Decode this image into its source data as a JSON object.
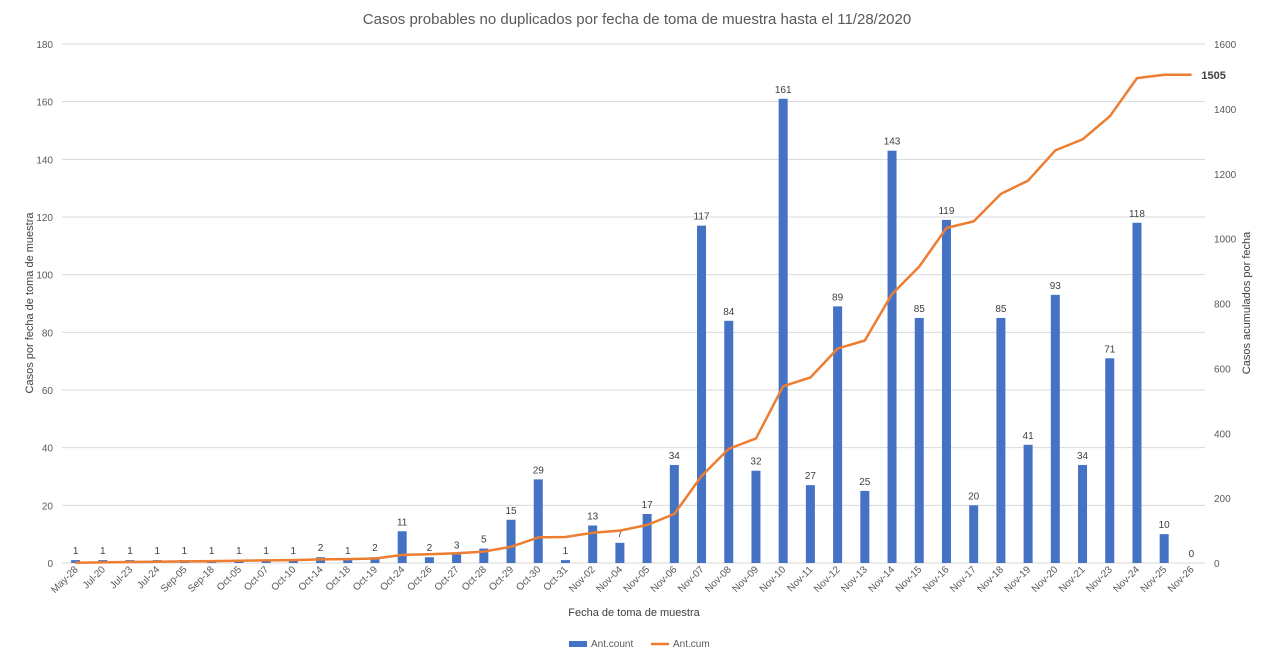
{
  "chart_data": {
    "type": "bar",
    "title": "Casos probables no duplicados por fecha de toma de muestra hasta el 11/28/2020",
    "xlabel": "Fecha de toma de muestra",
    "ylabel": "Casos por fecha de toma de muestra",
    "y2label": "Casos acumulados por fecha",
    "ylim": [
      0,
      180
    ],
    "y2lim": [
      0,
      1600
    ],
    "yticks": [
      "0",
      "20",
      "40",
      "60",
      "80",
      "100",
      "120",
      "140",
      "160",
      "180"
    ],
    "y2ticks": [
      "0",
      "200",
      "400",
      "600",
      "800",
      "1000",
      "1200",
      "1400",
      "1600"
    ],
    "grid": true,
    "legend_position": "bottom",
    "categories": [
      "May-28",
      "Jul-20",
      "Jul-23",
      "Jul-24",
      "Sep-05",
      "Sep-18",
      "Oct-05",
      "Oct-07",
      "Oct-10",
      "Oct-14",
      "Oct-18",
      "Oct-19",
      "Oct-24",
      "Oct-26",
      "Oct-27",
      "Oct-28",
      "Oct-29",
      "Oct-30",
      "Oct-31",
      "Nov-02",
      "Nov-04",
      "Nov-05",
      "Nov-06",
      "Nov-07",
      "Nov-08",
      "Nov-09",
      "Nov-10",
      "Nov-11",
      "Nov-12",
      "Nov-13",
      "Nov-14",
      "Nov-15",
      "Nov-16",
      "Nov-17",
      "Nov-18",
      "Nov-19",
      "Nov-20",
      "Nov-21",
      "Nov-23",
      "Nov-24",
      "Nov-25",
      "Nov-26"
    ],
    "series": [
      {
        "name": "Ant.count",
        "type": "bar",
        "axis": "left",
        "color": "#4472c4",
        "values": [
          1,
          1,
          1,
          1,
          1,
          1,
          1,
          1,
          1,
          2,
          1,
          2,
          11,
          2,
          3,
          5,
          15,
          29,
          1,
          13,
          7,
          17,
          34,
          117,
          84,
          32,
          161,
          27,
          89,
          25,
          143,
          85,
          119,
          20,
          85,
          41,
          93,
          34,
          71,
          118,
          10,
          0
        ]
      },
      {
        "name": "Ant.cum",
        "type": "line",
        "axis": "right",
        "color": "#ed7d31",
        "values": [
          1,
          2,
          3,
          4,
          5,
          6,
          7,
          8,
          9,
          11,
          12,
          14,
          25,
          27,
          30,
          35,
          50,
          79,
          80,
          93,
          100,
          117,
          151,
          268,
          352,
          384,
          545,
          572,
          661,
          686,
          829,
          914,
          1033,
          1053,
          1138,
          1179,
          1272,
          1306,
          1377,
          1495,
          1505,
          1505
        ],
        "end_label": "1505"
      }
    ]
  }
}
